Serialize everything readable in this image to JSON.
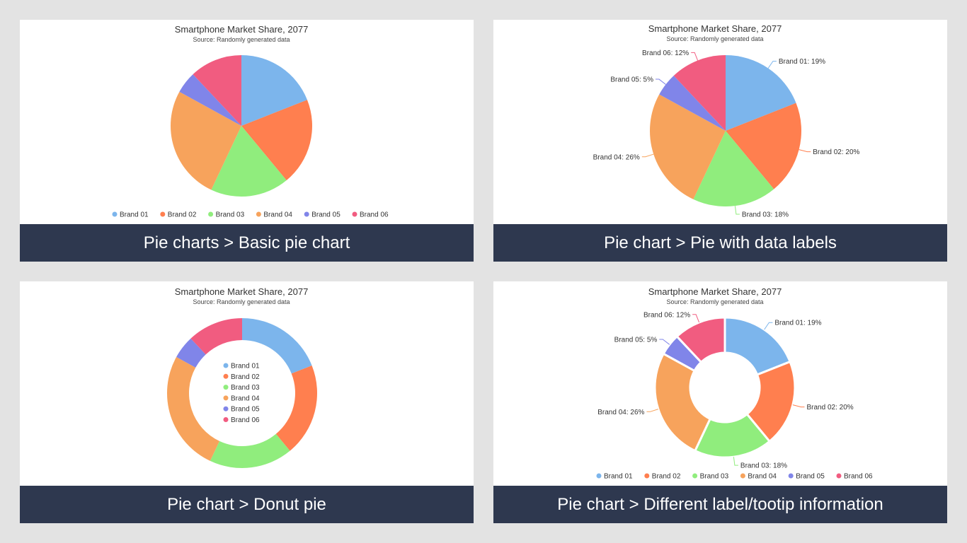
{
  "panels": [
    {
      "caption": "Pie charts > Basic pie chart",
      "chart_data": {
        "type": "pie",
        "variant": "basic",
        "title": "Smartphone Market Share, 2077",
        "subtitle": "Source: Randomly generated data",
        "labels": [
          "Brand 01",
          "Brand 02",
          "Brand 03",
          "Brand 04",
          "Brand 05",
          "Brand 06"
        ],
        "values": [
          19,
          20,
          18,
          26,
          5,
          12
        ],
        "colors": [
          "#7cb5ec",
          "#ff7f4f",
          "#90ed7d",
          "#f7a35c",
          "#8085e9",
          "#f15c80"
        ],
        "data_labels": false,
        "legend": "bottom"
      }
    },
    {
      "caption": "Pie chart > Pie with data labels",
      "chart_data": {
        "type": "pie",
        "variant": "data-labels",
        "title": "Smartphone Market Share, 2077",
        "subtitle": "Source: Randomly generated data",
        "labels": [
          "Brand 01",
          "Brand 02",
          "Brand 03",
          "Brand 04",
          "Brand 05",
          "Brand 06"
        ],
        "values": [
          19,
          20,
          18,
          26,
          5,
          12
        ],
        "colors": [
          "#7cb5ec",
          "#ff7f4f",
          "#90ed7d",
          "#f7a35c",
          "#8085e9",
          "#f15c80"
        ],
        "data_labels": true,
        "data_label_texts": [
          "Brand 01: 19%",
          "Brand 02: 20%",
          "Brand 03: 18%",
          "Brand 04: 26%",
          "Brand 05: 5%",
          "Brand 06: 12%"
        ],
        "legend": "none"
      }
    },
    {
      "caption": "Pie chart > Donut pie",
      "chart_data": {
        "type": "pie",
        "variant": "donut",
        "title": "Smartphone Market Share, 2077",
        "subtitle": "Source: Randomly generated data",
        "labels": [
          "Brand 01",
          "Brand 02",
          "Brand 03",
          "Brand 04",
          "Brand 05",
          "Brand 06"
        ],
        "values": [
          19,
          20,
          18,
          26,
          5,
          12
        ],
        "colors": [
          "#7cb5ec",
          "#ff7f4f",
          "#90ed7d",
          "#f7a35c",
          "#8085e9",
          "#f15c80"
        ],
        "data_labels": false,
        "legend": "center"
      }
    },
    {
      "caption": "Pie chart > Different label/tootip information",
      "chart_data": {
        "type": "pie",
        "variant": "donut-labels",
        "title": "Smartphone Market Share, 2077",
        "subtitle": "Source: Randomly generated data",
        "labels": [
          "Brand 01",
          "Brand 02",
          "Brand 03",
          "Brand 04",
          "Brand 05",
          "Brand 06"
        ],
        "values": [
          19,
          20,
          18,
          26,
          5,
          12
        ],
        "colors": [
          "#7cb5ec",
          "#ff7f4f",
          "#90ed7d",
          "#f7a35c",
          "#8085e9",
          "#f15c80"
        ],
        "data_labels": true,
        "data_label_texts": [
          "Brand 01: 19%",
          "Brand 02: 20%",
          "Brand 03: 18%",
          "Brand 04: 26%",
          "Brand 05: 5%",
          "Brand 06: 12%"
        ],
        "legend": "bottom"
      }
    }
  ]
}
